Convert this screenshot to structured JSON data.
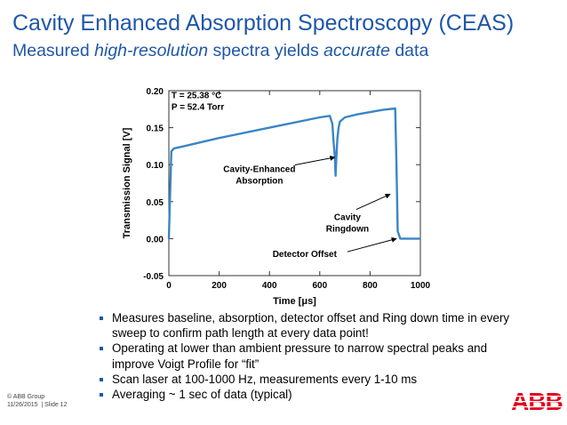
{
  "header": {
    "title": "Cavity Enhanced Absorption Spectroscopy (CEAS)",
    "subtitle_parts": [
      "Measured ",
      "high-resolution",
      " spectra yields ",
      "accurate",
      " data"
    ]
  },
  "chart_data": {
    "type": "line",
    "xlabel": "Time [μs]",
    "ylabel": "Transmission Signal [V]",
    "xlim": [
      0,
      1000
    ],
    "ylim": [
      -0.05,
      0.2
    ],
    "xticks": [
      "0",
      "200",
      "400",
      "600",
      "800",
      "1000"
    ],
    "yticks": [
      "-0.05",
      "0.00",
      "0.05",
      "0.10",
      "0.15",
      "0.20"
    ],
    "grid": false,
    "series": [
      {
        "x": [
          0,
          5,
          10,
          20,
          60,
          200,
          400,
          600,
          640,
          650,
          655,
          660,
          663,
          666,
          670,
          675,
          680,
          700,
          750,
          800,
          850,
          900,
          905,
          910,
          920,
          1000
        ],
        "y": [
          0.0,
          0.06,
          0.118,
          0.122,
          0.125,
          0.136,
          0.15,
          0.164,
          0.166,
          0.155,
          0.13,
          0.11,
          0.085,
          0.11,
          0.135,
          0.15,
          0.158,
          0.164,
          0.168,
          0.171,
          0.174,
          0.176,
          0.1,
          0.01,
          0.0,
          0.0
        ],
        "color": "#3a85c6"
      }
    ],
    "annotations": [
      {
        "lines": [
          "T = 25.38 °C",
          "P = 52.4 Torr"
        ],
        "x": 10,
        "y": 0.19
      },
      {
        "lines": [
          "Cavity-Enhanced",
          "Absorption"
        ],
        "x": 360,
        "y": 0.09,
        "arrow_to": [
          660,
          0.11
        ]
      },
      {
        "lines": [
          "Cavity",
          "Ringdown"
        ],
        "x": 710,
        "y": 0.025,
        "arrow_to": [
          880,
          0.06
        ]
      },
      {
        "lines": [
          "Detector Offset"
        ],
        "x": 540,
        "y": -0.025,
        "arrow_to": [
          905,
          0.0
        ]
      }
    ]
  },
  "bullets": [
    "Measures baseline, absorption, detector offset and Ring down time in every sweep to confirm path length at every data point!",
    "Operating at lower than ambient pressure to narrow spectral peaks and improve Voigt Profile for “fit”",
    "Scan laser at 100-1000 Hz, measurements every 1-10 ms",
    "Averaging ~ 1 sec of data (typical)"
  ],
  "footer": {
    "copyright": "© ABB Group",
    "date": "11/26/2015",
    "slide": "| Slide 12"
  },
  "logo": {
    "text": "ABB",
    "color": "#e2001a"
  }
}
